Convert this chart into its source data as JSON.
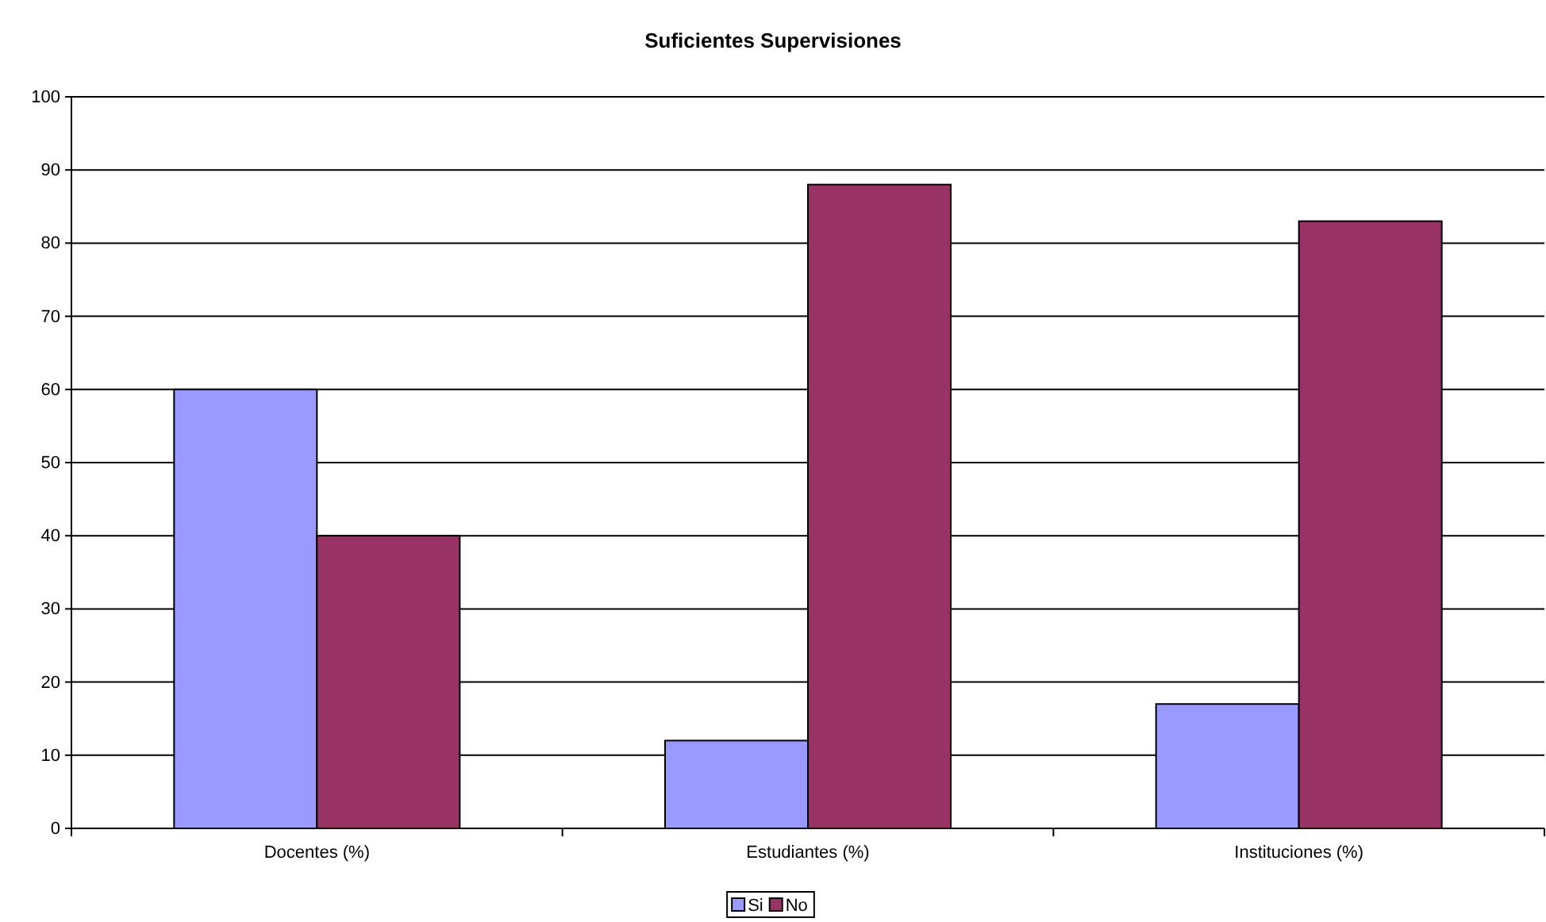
{
  "chart_data": {
    "type": "bar",
    "title": "Suficientes Supervisiones",
    "categories": [
      "Docentes (%)",
      "Estudiantes (%)",
      "Instituciones (%)"
    ],
    "series": [
      {
        "name": "Si",
        "color": "#9999ff",
        "values": [
          60,
          12,
          17
        ]
      },
      {
        "name": "No",
        "color": "#993366",
        "values": [
          40,
          88,
          83
        ]
      }
    ],
    "ylim": [
      0,
      100
    ],
    "yticks": [
      0,
      10,
      20,
      30,
      40,
      50,
      60,
      70,
      80,
      90,
      100
    ],
    "grid": "y",
    "legend": "bottom"
  }
}
